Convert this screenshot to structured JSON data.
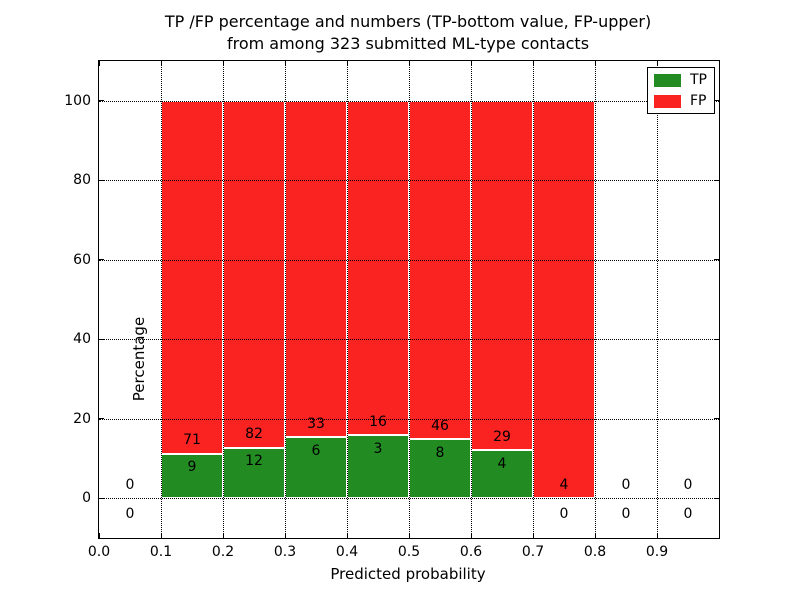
{
  "header": {
    "title_line1": "TP /FP percentage and numbers (TP-bottom value, FP-upper)",
    "title_line2": "from among 323 submitted ML-type contacts"
  },
  "chart_data": {
    "type": "bar",
    "stacked": true,
    "title": "TP /FP percentage and numbers (TP-bottom value, FP-upper) from among 323 submitted ML-type contacts",
    "xlabel": "Predicted probability",
    "ylabel": "Percentage",
    "total_contacts": 323,
    "xlim": [
      0.0,
      1.0
    ],
    "ylim": [
      -10,
      110
    ],
    "xtick_values": [
      0.0,
      0.1,
      0.2,
      0.3,
      0.4,
      0.5,
      0.6,
      0.7,
      0.8,
      0.9
    ],
    "xtick_labels": [
      "0.0",
      "0.1",
      "0.2",
      "0.3",
      "0.4",
      "0.5",
      "0.6",
      "0.7",
      "0.8",
      "0.9"
    ],
    "ytick_values": [
      0,
      20,
      40,
      60,
      80,
      100
    ],
    "ytick_labels": [
      "0",
      "20",
      "40",
      "60",
      "80",
      "100"
    ],
    "grid": "dotted",
    "bin_edges": [
      0.0,
      0.1,
      0.2,
      0.3,
      0.4,
      0.5,
      0.6,
      0.7,
      0.8,
      0.9,
      1.0
    ],
    "series": [
      {
        "name": "TP",
        "color": "#228b22",
        "values": [
          0,
          9,
          12,
          6,
          3,
          8,
          4,
          0,
          0,
          0
        ]
      },
      {
        "name": "FP",
        "color": "#fb2222",
        "values": [
          0,
          71,
          82,
          33,
          16,
          46,
          29,
          4,
          0,
          0
        ]
      }
    ],
    "bar_mode": "percent-stacked (each bin normalized to 100%, TP bottom, FP top)",
    "annotations": "counts drawn at each bin: FP count above TP/FP boundary, TP count below",
    "legend": {
      "position": "upper right",
      "entries": [
        {
          "label": "TP",
          "color": "#228b22"
        },
        {
          "label": "FP",
          "color": "#fb2222"
        }
      ]
    },
    "colors": {
      "tp": "#228b22",
      "fp": "#fb2222",
      "grid": "#000000",
      "frame": "#000000",
      "background": "#ffffff",
      "bar_edge": "#ffffff",
      "text": "#000000"
    }
  }
}
